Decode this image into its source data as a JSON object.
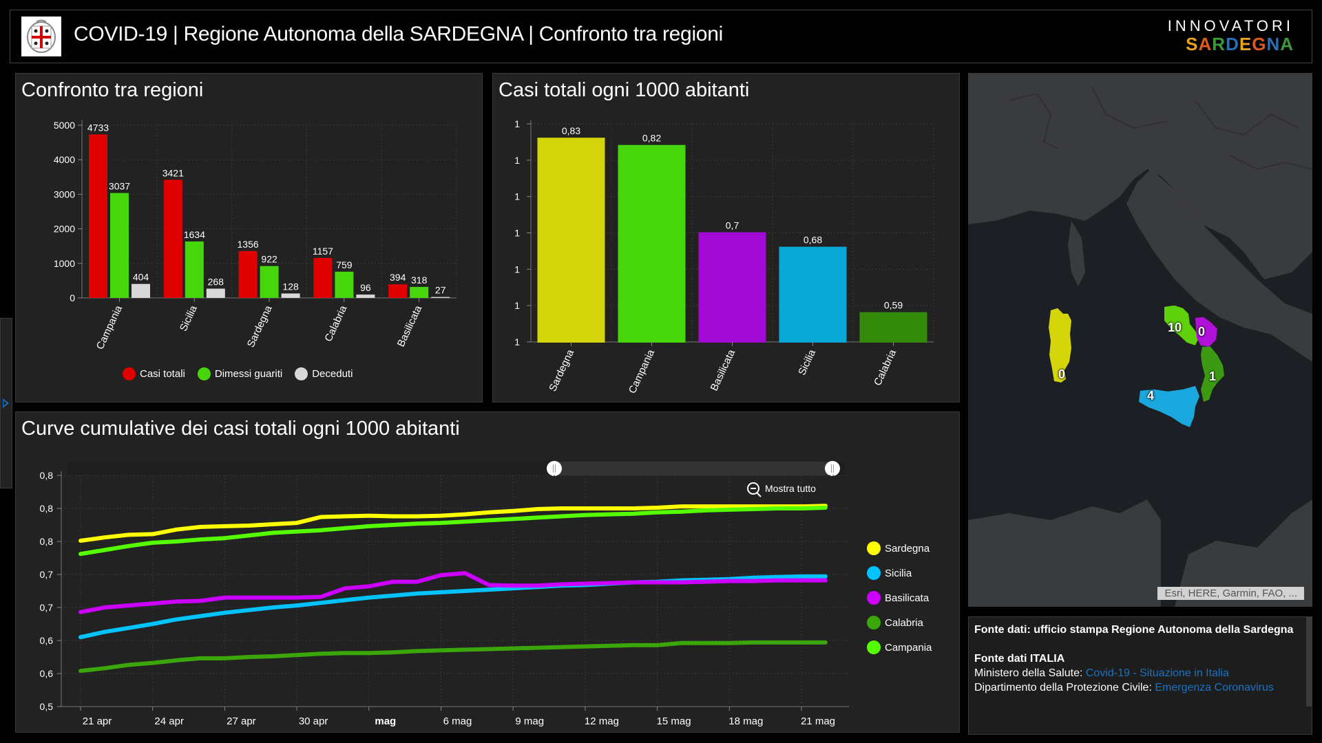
{
  "header": {
    "title": "COVID-19 | Regione Autonoma della SARDEGNA | Confronto tra regioni",
    "brand_top": "INNOVATORI",
    "brand_bottom_letters": [
      {
        "ch": "S",
        "color": "#e8a21b"
      },
      {
        "ch": "A",
        "color": "#e05a1f"
      },
      {
        "ch": "R",
        "color": "#3a9a3a"
      },
      {
        "ch": "D",
        "color": "#2a6fb5"
      },
      {
        "ch": "E",
        "color": "#e8a21b"
      },
      {
        "ch": "G",
        "color": "#e05a1f"
      },
      {
        "ch": "N",
        "color": "#2a6fb5"
      },
      {
        "ch": "A",
        "color": "#3a9a3a"
      }
    ]
  },
  "panels": {
    "confronto_title": "Confronto tra regioni",
    "casi1000_title": "Casi totali ogni 1000 abitanti",
    "curve_title": "Curve cumulative dei casi totali ogni 1000 abitanti"
  },
  "chart_data": [
    {
      "type": "bar",
      "title": "Confronto tra regioni",
      "categories": [
        "Campania",
        "Sicilia",
        "Sardegna",
        "Calabria",
        "Basilicata"
      ],
      "series": [
        {
          "name": "Casi totali",
          "color": "#e00000",
          "values": [
            4733,
            3421,
            1356,
            1157,
            394
          ]
        },
        {
          "name": "Dimessi guariti",
          "color": "#47d60b",
          "values": [
            3037,
            1634,
            922,
            759,
            318
          ]
        },
        {
          "name": "Deceduti",
          "color": "#d9d9d9",
          "values": [
            404,
            268,
            128,
            96,
            27
          ]
        }
      ],
      "ylim": [
        0,
        5000
      ],
      "yticks": [
        "0",
        "1000",
        "2000",
        "3000",
        "4000",
        "5000"
      ],
      "grid": true,
      "legend": "bottom"
    },
    {
      "type": "bar",
      "title": "Casi totali ogni 1000 abitanti",
      "categories": [
        "Sardegna",
        "Campania",
        "Basilicata",
        "Sicilia",
        "Calabria"
      ],
      "values": [
        0.83,
        0.82,
        0.7,
        0.68,
        0.59
      ],
      "value_labels": [
        "0,83",
        "0,82",
        "0,7",
        "0,68",
        "0,59"
      ],
      "colors": [
        "#d4d40a",
        "#47d60b",
        "#a30ad6",
        "#0aa8d6",
        "#348a0a"
      ],
      "ylim": [
        0.55,
        0.85
      ],
      "yticks": [
        "1",
        "1",
        "1",
        "1",
        "1",
        "1",
        "1"
      ],
      "grid": true
    },
    {
      "type": "line",
      "title": "Curve cumulative dei casi totali ogni 1000 abitanti",
      "x": [
        "21 apr",
        "22 apr",
        "23 apr",
        "24 apr",
        "25 apr",
        "26 apr",
        "27 apr",
        "28 apr",
        "29 apr",
        "30 apr",
        "1 mag",
        "2 mag",
        "3 mag",
        "4 mag",
        "5 mag",
        "6 mag",
        "7 mag",
        "8 mag",
        "9 mag",
        "10 mag",
        "11 mag",
        "12 mag",
        "13 mag",
        "14 mag",
        "15 mag",
        "16 mag",
        "17 mag",
        "18 mag",
        "19 mag",
        "20 mag",
        "21 mag",
        "22 mag"
      ],
      "xticks": [
        "21 apr",
        "24 apr",
        "27 apr",
        "30 apr",
        "mag",
        "6 mag",
        "9 mag",
        "12 mag",
        "15 mag",
        "18 mag",
        "21 mag"
      ],
      "yticks": [
        "0,5",
        "0,6",
        "0,6",
        "0,7",
        "0,7",
        "0,8",
        "0,8",
        "0,8"
      ],
      "ylim": [
        0.5,
        0.85
      ],
      "grid": true,
      "legend": "right",
      "series": [
        {
          "name": "Sardegna",
          "color": "#ffff00",
          "values": [
            0.751,
            0.756,
            0.76,
            0.761,
            0.768,
            0.772,
            0.773,
            0.774,
            0.776,
            0.778,
            0.787,
            0.788,
            0.789,
            0.788,
            0.788,
            0.789,
            0.791,
            0.794,
            0.796,
            0.799,
            0.8,
            0.8,
            0.8,
            0.8,
            0.801,
            0.803,
            0.803,
            0.803,
            0.803,
            0.803,
            0.803,
            0.804
          ]
        },
        {
          "name": "Sicilia",
          "color": "#00c3ff",
          "values": [
            0.605,
            0.613,
            0.619,
            0.625,
            0.632,
            0.637,
            0.642,
            0.646,
            0.65,
            0.653,
            0.657,
            0.661,
            0.665,
            0.668,
            0.671,
            0.673,
            0.675,
            0.677,
            0.679,
            0.681,
            0.683,
            0.684,
            0.686,
            0.688,
            0.689,
            0.691,
            0.692,
            0.693,
            0.695,
            0.696,
            0.697,
            0.697
          ]
        },
        {
          "name": "Basilicata",
          "color": "#cc00ff",
          "values": [
            0.643,
            0.65,
            0.653,
            0.656,
            0.659,
            0.66,
            0.665,
            0.665,
            0.665,
            0.665,
            0.666,
            0.679,
            0.682,
            0.689,
            0.689,
            0.699,
            0.702,
            0.684,
            0.683,
            0.683,
            0.685,
            0.686,
            0.687,
            0.688,
            0.688,
            0.688,
            0.689,
            0.69,
            0.69,
            0.691,
            0.691,
            0.691
          ]
        },
        {
          "name": "Calabria",
          "color": "#3aa60a",
          "values": [
            0.554,
            0.558,
            0.563,
            0.566,
            0.57,
            0.573,
            0.573,
            0.575,
            0.576,
            0.578,
            0.58,
            0.581,
            0.581,
            0.582,
            0.584,
            0.585,
            0.586,
            0.587,
            0.588,
            0.589,
            0.59,
            0.591,
            0.592,
            0.593,
            0.593,
            0.596,
            0.596,
            0.596,
            0.597,
            0.597,
            0.597,
            0.597
          ]
        },
        {
          "name": "Campania",
          "color": "#55ff00",
          "values": [
            0.731,
            0.737,
            0.743,
            0.748,
            0.75,
            0.753,
            0.755,
            0.759,
            0.763,
            0.765,
            0.767,
            0.77,
            0.773,
            0.775,
            0.777,
            0.778,
            0.78,
            0.782,
            0.784,
            0.786,
            0.788,
            0.79,
            0.791,
            0.792,
            0.794,
            0.795,
            0.797,
            0.798,
            0.799,
            0.8,
            0.8,
            0.801
          ]
        }
      ]
    }
  ],
  "slider": {
    "show_all_label": "Mostra tutto"
  },
  "map": {
    "attribution": "Esri, HERE, Garmin, FAO, ...",
    "region_labels": [
      {
        "region": "Sardegna",
        "label": "0",
        "color": "#d4d40a"
      },
      {
        "region": "Campania",
        "label": "10",
        "color": "#5fd10b"
      },
      {
        "region": "Basilicata",
        "label": "0",
        "color": "#b010d8"
      },
      {
        "region": "Calabria",
        "label": "1",
        "color": "#3c9a12"
      },
      {
        "region": "Sicilia",
        "label": "4",
        "color": "#1aa7dd"
      }
    ]
  },
  "info": {
    "source_sardegna": "Fonte dati: ufficio stampa Regione Autonoma della Sardegna",
    "source_italia_title": "Fonte dati ITALIA",
    "ministero_label": "Ministero della Salute: ",
    "ministero_link": "Covid-19 - Situazione in Italia",
    "protezione_label": "Dipartimento della Protezione Civile: ",
    "protezione_link": "Emergenza Coronavirus"
  }
}
